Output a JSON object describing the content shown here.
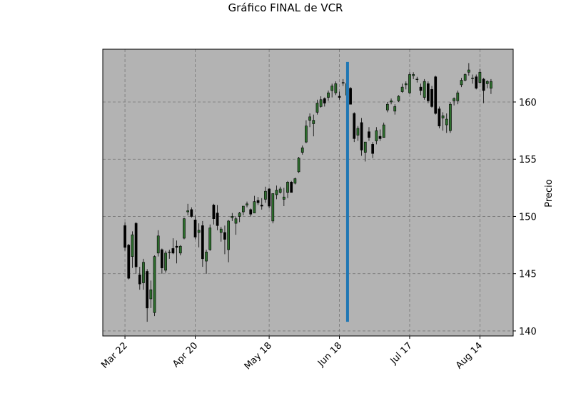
{
  "chart_data": {
    "type": "candlestick",
    "title": "Gráfico FINAL de VCR",
    "ylabel": "Precio",
    "up_color": "#2d6e2d",
    "down_color": "#000000",
    "edge_color": "#000000",
    "background": "#b3b3b3",
    "grid": true,
    "xlim": [
      -6,
      105
    ],
    "ylim": [
      139.56,
      164.61
    ],
    "xticks": [
      {
        "value": 0,
        "label": "Mar 22"
      },
      {
        "value": 19,
        "label": "Apr 20"
      },
      {
        "value": 39,
        "label": "May 18"
      },
      {
        "value": 58,
        "label": "Jun 18"
      },
      {
        "value": 77,
        "label": "Jul 17"
      },
      {
        "value": 96,
        "label": "Aug 14"
      }
    ],
    "yticks": [
      140,
      145,
      150,
      155,
      160
    ],
    "vline": {
      "x": 60.2,
      "ymin": 140.8,
      "ymax": 163.5,
      "color": "#1f77b4"
    },
    "open": [
      149.2,
      147.5,
      146.5,
      149.4,
      144.9,
      144.2,
      145.2,
      142.8,
      141.6,
      146.8,
      147.1,
      145.3,
      146.9,
      147.2,
      147.4,
      146.8,
      148.1,
      150.4,
      150.6,
      149.7,
      148.6,
      149.2,
      146.1,
      147.1,
      151.0,
      150.3,
      148.6,
      148.6,
      147.1,
      149.9,
      149.4,
      150.0,
      150.4,
      151.0,
      150.6,
      150.3,
      151.4,
      151.0,
      151.5,
      152.4,
      149.6,
      151.9,
      152.1,
      151.5,
      152.1,
      153.0,
      152.9,
      153.9,
      155.6,
      156.5,
      158.4,
      158.1,
      159.1,
      159.6,
      160.3,
      160.4,
      161.0,
      160.8,
      160.5,
      161.7,
      160.6,
      161.2,
      159.0,
      157.1,
      158.2,
      155.6,
      157.4,
      156.3,
      156.6,
      157.0,
      156.9,
      159.3,
      160.0,
      159.2,
      160.1,
      160.9,
      161.5,
      160.8,
      162.3,
      162.0,
      161.3,
      160.4,
      161.6,
      161.1,
      162.2,
      159.4,
      158.6,
      158.0,
      157.5,
      160.1,
      160.1,
      161.5,
      161.9,
      162.6,
      162.1,
      162.2,
      161.7,
      162.0,
      161.6,
      161.2
    ],
    "high": [
      149.5,
      147.6,
      148.7,
      149.5,
      145.6,
      146.3,
      145.4,
      144.4,
      146.6,
      148.8,
      147.2,
      147.0,
      147.1,
      148.1,
      147.9,
      147.5,
      149.9,
      151.1,
      150.8,
      150.1,
      149.4,
      149.6,
      147.1,
      149.3,
      151.1,
      151.0,
      149.1,
      149.2,
      149.7,
      150.3,
      150.0,
      150.4,
      150.9,
      151.3,
      150.7,
      151.8,
      151.7,
      151.6,
      152.6,
      152.5,
      152.0,
      152.7,
      152.6,
      152.5,
      153.1,
      153.1,
      153.4,
      155.2,
      156.2,
      158.4,
      159.0,
      158.9,
      160.2,
      160.5,
      160.4,
      161.0,
      161.6,
      161.8,
      160.9,
      162.0,
      161.8,
      161.3,
      159.1,
      157.9,
      158.6,
      156.5,
      157.8,
      156.5,
      157.8,
      157.6,
      158.2,
      160.0,
      160.3,
      159.8,
      160.6,
      161.6,
      161.8,
      162.6,
      162.6,
      162.2,
      161.6,
      162.0,
      161.8,
      161.4,
      162.3,
      159.6,
      159.1,
      159.0,
      160.0,
      160.4,
      161.0,
      162.1,
      162.5,
      163.4,
      162.4,
      162.4,
      162.9,
      162.1,
      161.9,
      162.0
    ],
    "low": [
      147.0,
      144.5,
      145.5,
      145.0,
      143.6,
      143.6,
      140.8,
      142.0,
      141.3,
      146.5,
      145.0,
      145.1,
      146.3,
      146.7,
      145.9,
      146.6,
      148.0,
      150.1,
      149.9,
      148.0,
      147.3,
      145.6,
      145.0,
      147.0,
      149.3,
      148.8,
      147.8,
      146.7,
      146.0,
      149.6,
      148.4,
      149.5,
      150.1,
      150.8,
      150.0,
      150.3,
      151.0,
      150.6,
      151.2,
      150.7,
      149.4,
      151.5,
      152.0,
      150.9,
      151.6,
      152.3,
      152.8,
      153.8,
      155.4,
      156.4,
      157.8,
      157.0,
      158.9,
      159.5,
      159.6,
      160.1,
      160.4,
      160.6,
      160.2,
      161.4,
      160.2,
      159.8,
      156.5,
      156.6,
      155.3,
      154.8,
      156.6,
      155.1,
      156.3,
      156.6,
      156.9,
      159.1,
      159.8,
      158.9,
      160.0,
      160.8,
      161.1,
      160.7,
      162.0,
      161.7,
      160.6,
      160.2,
      159.9,
      159.5,
      158.9,
      157.7,
      157.5,
      157.3,
      157.3,
      159.7,
      159.8,
      161.3,
      161.8,
      162.3,
      161.6,
      161.1,
      161.6,
      159.9,
      161.2,
      160.7
    ],
    "close": [
      147.3,
      144.6,
      148.4,
      145.6,
      144.1,
      146.0,
      142.0,
      143.6,
      146.5,
      148.3,
      145.5,
      146.8,
      146.9,
      146.8,
      147.3,
      147.4,
      149.8,
      150.5,
      150.0,
      148.2,
      148.8,
      146.3,
      146.9,
      149.0,
      149.8,
      149.2,
      148.9,
      148.0,
      149.6,
      150.0,
      149.8,
      150.3,
      150.9,
      151.1,
      150.2,
      151.3,
      151.2,
      150.9,
      152.2,
      150.9,
      152.0,
      152.3,
      152.4,
      151.7,
      153.0,
      152.1,
      153.3,
      155.1,
      156.0,
      157.9,
      158.7,
      158.4,
      159.9,
      160.2,
      159.9,
      160.8,
      161.4,
      161.6,
      160.4,
      161.7,
      161.6,
      159.8,
      156.8,
      157.7,
      155.8,
      156.5,
      156.9,
      155.5,
      157.5,
      156.8,
      158.0,
      159.8,
      160.1,
      159.6,
      160.5,
      161.3,
      161.6,
      162.4,
      162.4,
      162.0,
      161.0,
      161.8,
      160.1,
      159.6,
      159.0,
      157.9,
      158.8,
      158.5,
      159.8,
      160.3,
      160.8,
      161.9,
      162.4,
      162.8,
      162.1,
      161.2,
      162.6,
      161.0,
      161.8,
      161.8
    ]
  }
}
